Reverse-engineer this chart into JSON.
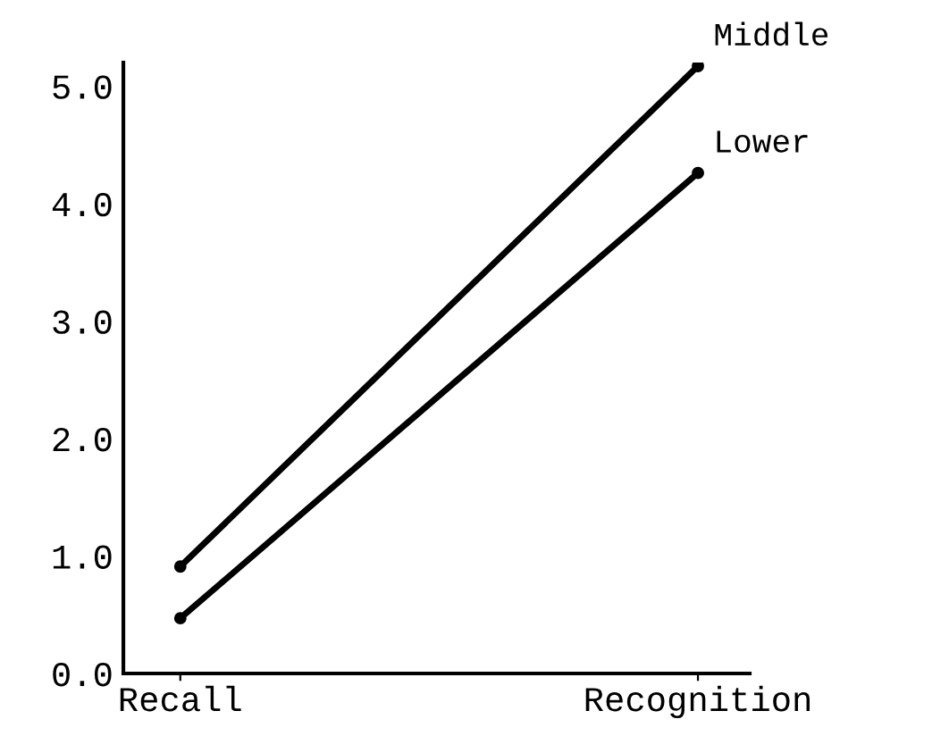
{
  "chart_data": {
    "type": "line",
    "categories": [
      "Recall",
      "Recognition"
    ],
    "series": [
      {
        "name": "Middle",
        "color": "#000000",
        "values": [
          0.91,
          5.17
        ]
      },
      {
        "name": "Lower",
        "color": "#000000",
        "values": [
          0.47,
          4.26
        ]
      }
    ],
    "ylim": [
      0,
      5.2
    ],
    "yticks": [
      {
        "value": 0,
        "label": "0.0"
      },
      {
        "value": 1,
        "label": "1.0"
      },
      {
        "value": 2,
        "label": "2.0"
      },
      {
        "value": 3,
        "label": "3.0"
      },
      {
        "value": 4,
        "label": "4.0"
      },
      {
        "value": 5,
        "label": "5.0"
      }
    ],
    "marker": "circle",
    "line_style": "solid",
    "grid": false,
    "legend": false
  }
}
